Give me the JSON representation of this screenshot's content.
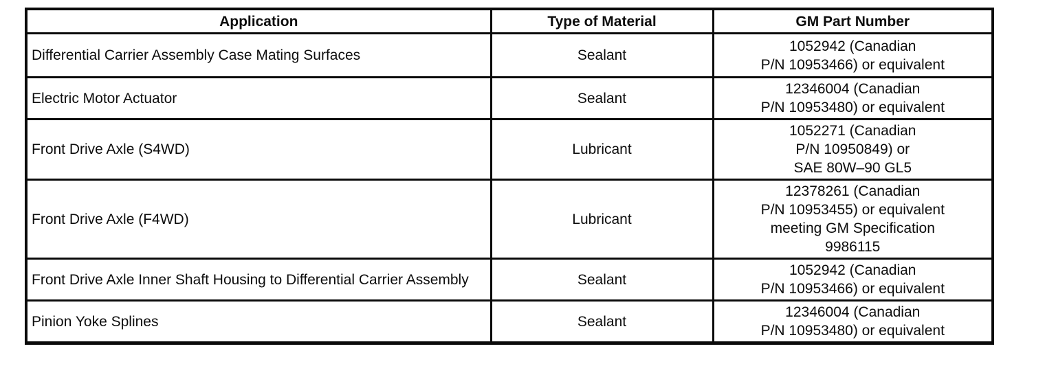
{
  "table": {
    "columns": [
      {
        "label": "Application"
      },
      {
        "label": "Type of Material"
      },
      {
        "label": "GM Part Number"
      }
    ],
    "rows": [
      {
        "application": "Differential Carrier Assembly Case Mating Surfaces",
        "material": "Sealant",
        "part_number": "1052942 (Canadian\nP/N 10953466) or equivalent"
      },
      {
        "application": "Electric Motor Actuator",
        "material": "Sealant",
        "part_number": "12346004 (Canadian\nP/N 10953480) or equivalent"
      },
      {
        "application": "Front Drive Axle (S4WD)",
        "material": "Lubricant",
        "part_number": "1052271 (Canadian\nP/N 10950849) or\nSAE 80W–90 GL5"
      },
      {
        "application": "Front Drive Axle (F4WD)",
        "material": "Lubricant",
        "part_number": "12378261 (Canadian\nP/N 10953455) or equivalent\nmeeting GM Specification\n9986115"
      },
      {
        "application": "Front Drive Axle Inner Shaft Housing to Differential Carrier Assembly",
        "material": "Sealant",
        "part_number": "1052942 (Canadian\nP/N 10953466) or equivalent"
      },
      {
        "application": "Pinion Yoke Splines",
        "material": "Sealant",
        "part_number": "12346004 (Canadian\nP/N 10953480) or equivalent"
      }
    ]
  },
  "colors": {
    "border": "#0a0a0a",
    "text": "#0d0d0d",
    "background": "#ffffff"
  }
}
